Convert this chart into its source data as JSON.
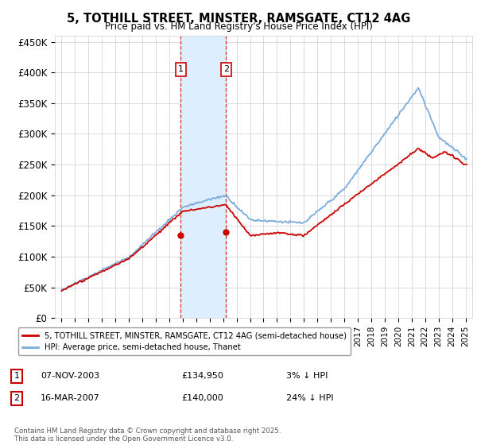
{
  "title": "5, TOTHILL STREET, MINSTER, RAMSGATE, CT12 4AG",
  "subtitle": "Price paid vs. HM Land Registry's House Price Index (HPI)",
  "ylabel_ticks": [
    "£0",
    "£50K",
    "£100K",
    "£150K",
    "£200K",
    "£250K",
    "£300K",
    "£350K",
    "£400K",
    "£450K"
  ],
  "ytick_values": [
    0,
    50000,
    100000,
    150000,
    200000,
    250000,
    300000,
    350000,
    400000,
    450000
  ],
  "ylim": [
    0,
    460000
  ],
  "xlim_start": 1994.5,
  "xlim_end": 2025.5,
  "purchase1_x": 2003.85,
  "purchase1_y": 134950,
  "purchase2_x": 2007.21,
  "purchase2_y": 140000,
  "purchase1_text": "07-NOV-2003",
  "purchase2_text": "16-MAR-2007",
  "purchase1_price": "£134,950",
  "purchase2_price": "£140,000",
  "purchase1_pct": "3% ↓ HPI",
  "purchase2_pct": "24% ↓ HPI",
  "legend_label1": "5, TOTHILL STREET, MINSTER, RAMSGATE, CT12 4AG (semi-detached house)",
  "legend_label2": "HPI: Average price, semi-detached house, Thanet",
  "line_color_red": "#cc0000",
  "line_color_blue": "#7aacdc",
  "shading_color": "#ddeeff",
  "box_color": "#cc0000",
  "footer": "Contains HM Land Registry data © Crown copyright and database right 2025.\nThis data is licensed under the Open Government Licence v3.0.",
  "background_color": "#ffffff",
  "grid_color": "#cccccc"
}
